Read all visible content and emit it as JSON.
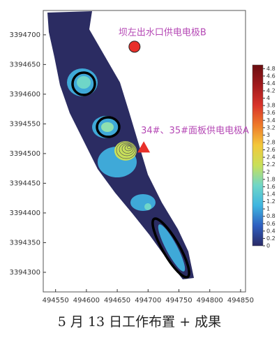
{
  "chart_data": {
    "type": "contour",
    "caption": "5 月 13 日工作布置 + 成果",
    "xlim": [
      494530,
      494858
    ],
    "xticks": [
      494550,
      494600,
      494650,
      494700,
      494750,
      494800,
      494850
    ],
    "ylim": [
      3394267,
      3394741
    ],
    "yticks": [
      3394300,
      3394350,
      3394400,
      3394450,
      3394500,
      3394550,
      3394600,
      3394650,
      3394700
    ],
    "clim": [
      0,
      4.9
    ],
    "cticks": [
      0,
      0.2,
      0.4,
      0.6,
      0.8,
      1,
      1.2,
      1.4,
      1.6,
      1.8,
      2,
      2.2,
      2.4,
      2.6,
      2.8,
      3,
      3.2,
      3.4,
      3.6,
      3.8,
      4,
      4.2,
      4.4,
      4.6,
      4.8
    ],
    "colormap": [
      "#2a2a66",
      "#2f5fc0",
      "#3fb5e0",
      "#6fd6c8",
      "#c8e05a",
      "#f3c83a",
      "#ee7a2a",
      "#d8332a",
      "#a0191c",
      "#6a0e10"
    ],
    "markers": [
      {
        "label": "坝左出水口供电电极B",
        "x": 494678,
        "y": 3394680,
        "shape": "circle",
        "color": "#e8302a"
      },
      {
        "label": "34#、35#面板供电电极A",
        "x": 494693,
        "y": 3394510,
        "shape": "triangle",
        "color": "#e8302a"
      }
    ]
  }
}
